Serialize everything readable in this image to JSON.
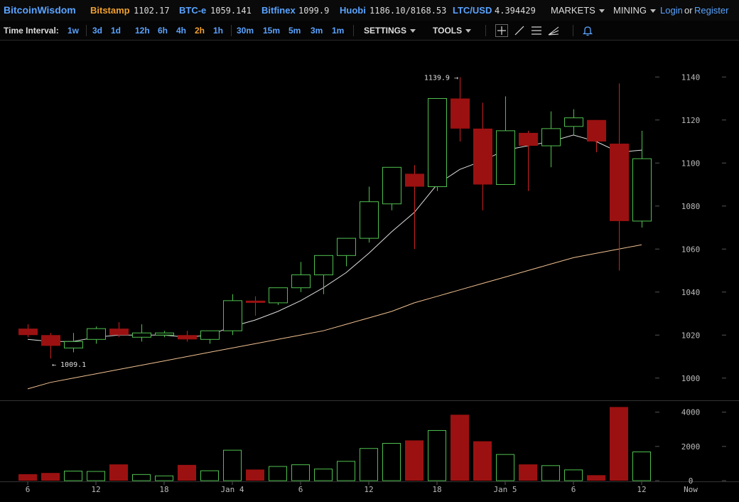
{
  "header": {
    "brand": "BitcoinWisdom",
    "tickers": [
      {
        "name": "Bitstamp",
        "value": "1102.17",
        "color": "#f0a030"
      },
      {
        "name": "BTC-e",
        "value": "1059.141",
        "color": "#5aa3ff"
      },
      {
        "name": "Bitfinex",
        "value": "1099.9",
        "color": "#5aa3ff"
      },
      {
        "name": "Huobi",
        "value": "1186.10/8168.53",
        "color": "#5aa3ff"
      },
      {
        "name": "LTC/USD",
        "value": "4.394429",
        "color": "#5aa3ff"
      }
    ],
    "markets_label": "MARKETS",
    "mining_label": "MINING",
    "login_label": "Login",
    "or_label": "or",
    "register_label": "Register"
  },
  "toolbar": {
    "time_interval_label": "Time Interval:",
    "intervals": [
      "1w",
      "3d",
      "1d",
      "12h",
      "6h",
      "4h",
      "2h",
      "1h",
      "30m",
      "15m",
      "5m",
      "3m",
      "1m"
    ],
    "active_interval": "2h",
    "settings_label": "SETTINGS",
    "tools_label": "TOOLS",
    "tool_icons": [
      "crosshair-icon",
      "trendline-icon",
      "horizontal-lines-icon",
      "fan-icon",
      "bell-icon"
    ]
  },
  "colors": {
    "up": "#4fc04f",
    "down": "#9b1111",
    "down_wick": "#cc2222",
    "ma_short": "#dddddd",
    "ma_long": "#f0c090",
    "accent": "#5aa3ff",
    "active": "#f0a030"
  },
  "chart_data": {
    "type": "candlestick",
    "price_axis": {
      "min": 990,
      "max": 1150,
      "ticks": [
        1000,
        1020,
        1040,
        1060,
        1080,
        1100,
        1120,
        1140
      ]
    },
    "volume_axis": {
      "min": 0,
      "max": 4400,
      "ticks": [
        0,
        2000,
        4000
      ]
    },
    "time_ticks": [
      "6",
      "12",
      "18",
      "Jan 4",
      "6",
      "12",
      "18",
      "Jan 5",
      "6",
      "12",
      "Now"
    ],
    "annotations": [
      {
        "text": "1139.9 →",
        "price": 1139.9,
        "bar": 19
      },
      {
        "text": "← 1009.1",
        "price": 1009.1,
        "bar": 1
      }
    ],
    "candles": [
      {
        "o": 1023,
        "h": 1025,
        "l": 1019,
        "c": 1020,
        "v": 380
      },
      {
        "o": 1020,
        "h": 1021,
        "l": 1009.1,
        "c": 1015,
        "v": 450
      },
      {
        "o": 1014,
        "h": 1021,
        "l": 1012,
        "c": 1017,
        "v": 580
      },
      {
        "o": 1018,
        "h": 1024,
        "l": 1016,
        "c": 1023,
        "v": 560
      },
      {
        "o": 1023,
        "h": 1026,
        "l": 1019,
        "c": 1020,
        "v": 950
      },
      {
        "o": 1019,
        "h": 1025,
        "l": 1017,
        "c": 1021,
        "v": 380
      },
      {
        "o": 1020,
        "h": 1022,
        "l": 1019,
        "c": 1021,
        "v": 300
      },
      {
        "o": 1020,
        "h": 1022,
        "l": 1017,
        "c": 1018,
        "v": 920
      },
      {
        "o": 1018,
        "h": 1022,
        "l": 1016,
        "c": 1022,
        "v": 600
      },
      {
        "o": 1022,
        "h": 1039,
        "l": 1020,
        "c": 1036,
        "v": 1800
      },
      {
        "o": 1036,
        "h": 1038,
        "l": 1029,
        "c": 1035,
        "v": 650
      },
      {
        "o": 1035,
        "h": 1042,
        "l": 1034,
        "c": 1042,
        "v": 850
      },
      {
        "o": 1042,
        "h": 1054,
        "l": 1040,
        "c": 1048,
        "v": 950
      },
      {
        "o": 1048,
        "h": 1057,
        "l": 1039,
        "c": 1057,
        "v": 700
      },
      {
        "o": 1057,
        "h": 1065,
        "l": 1052,
        "c": 1065,
        "v": 1150
      },
      {
        "o": 1065,
        "h": 1089,
        "l": 1063,
        "c": 1082,
        "v": 1900
      },
      {
        "o": 1081,
        "h": 1098,
        "l": 1078,
        "c": 1098,
        "v": 2200
      },
      {
        "o": 1095,
        "h": 1099,
        "l": 1060,
        "c": 1089,
        "v": 2350
      },
      {
        "o": 1089,
        "h": 1130,
        "l": 1087,
        "c": 1130,
        "v": 2950
      },
      {
        "o": 1130,
        "h": 1139.9,
        "l": 1110,
        "c": 1116,
        "v": 3850
      },
      {
        "o": 1116,
        "h": 1128,
        "l": 1078,
        "c": 1090,
        "v": 2300
      },
      {
        "o": 1090,
        "h": 1131,
        "l": 1090,
        "c": 1115,
        "v": 1550
      },
      {
        "o": 1114,
        "h": 1115,
        "l": 1087,
        "c": 1108,
        "v": 950
      },
      {
        "o": 1108,
        "h": 1124,
        "l": 1098,
        "c": 1116,
        "v": 900
      },
      {
        "o": 1117,
        "h": 1125,
        "l": 1113,
        "c": 1121,
        "v": 650
      },
      {
        "o": 1120,
        "h": 1120,
        "l": 1105,
        "c": 1110,
        "v": 320
      },
      {
        "o": 1109,
        "h": 1137,
        "l": 1050,
        "c": 1073,
        "v": 4300
      },
      {
        "o": 1073,
        "h": 1115,
        "l": 1070,
        "c": 1102,
        "v": 1700
      }
    ],
    "ma_short": [
      1018,
      1017,
      1017,
      1019,
      1020,
      1020,
      1020,
      1019,
      1020,
      1024,
      1027,
      1031,
      1036,
      1042,
      1049,
      1058,
      1068,
      1077,
      1090,
      1097,
      1101,
      1106,
      1108,
      1110,
      1113,
      1110,
      1105,
      1106
    ],
    "ma_long": [
      995,
      998,
      1000,
      1002,
      1004,
      1006,
      1008,
      1010,
      1012,
      1014,
      1016,
      1018,
      1020,
      1022,
      1025,
      1028,
      1031,
      1035,
      1038,
      1041,
      1044,
      1047,
      1050,
      1053,
      1056,
      1058,
      1060,
      1062
    ]
  }
}
